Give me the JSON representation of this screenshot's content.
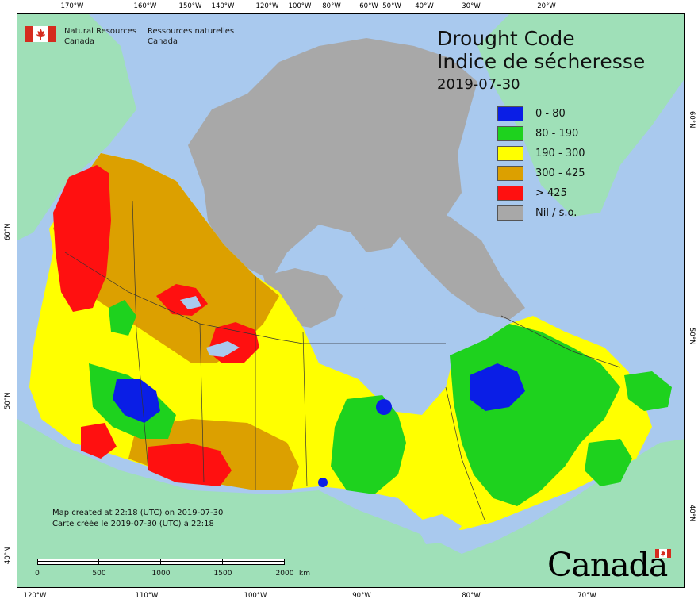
{
  "map": {
    "title_en": "Drought Code",
    "title_fr": "Indice de sécheresse",
    "date": "2019-07-30",
    "agency_en_line1": "Natural Resources",
    "agency_en_line2": "Canada",
    "agency_fr_line1": "Ressources naturelles",
    "agency_fr_line2": "Canada",
    "created_en": "Map created at 22:18 (UTC) on 2019-07-30",
    "created_fr": "Carte créée le 2019-07-30 (UTC) à 22:18",
    "wordmark": "Canada",
    "scale_labels": [
      "0",
      "500",
      "1000",
      "1500",
      "2000",
      "km"
    ],
    "top_ticks": [
      "170°W",
      "160°W",
      "150°W",
      "140°W",
      "120°W",
      "100°W",
      "80°W",
      "60°W",
      "50°W",
      "40°W",
      "30°W",
      "20°W"
    ],
    "bottom_ticks": [
      "120°W",
      "110°W",
      "100°W",
      "90°W",
      "80°W",
      "70°W"
    ],
    "left_ticks": [
      "60°N",
      "50°N",
      "40°N"
    ],
    "right_ticks": [
      "60°N",
      "50°N",
      "40°N"
    ],
    "colors": {
      "water": "#a9c9ee",
      "foreign_land": "#9fe0b8",
      "nil": "#a8a8a8",
      "blue": "#0a1ee6",
      "green": "#1ed21e",
      "yellow": "#ffff00",
      "orange": "#dca000",
      "red": "#ff1010"
    }
  },
  "legend": [
    {
      "label": "0 - 80",
      "color": "#0a1ee6"
    },
    {
      "label": "80 - 190",
      "color": "#1ed21e"
    },
    {
      "label": "190 - 300",
      "color": "#ffff00"
    },
    {
      "label": "300 - 425",
      "color": "#dca000"
    },
    {
      "label": "> 425",
      "color": "#ff1010"
    },
    {
      "label": "Nil / s.o.",
      "color": "#a8a8a8"
    }
  ]
}
